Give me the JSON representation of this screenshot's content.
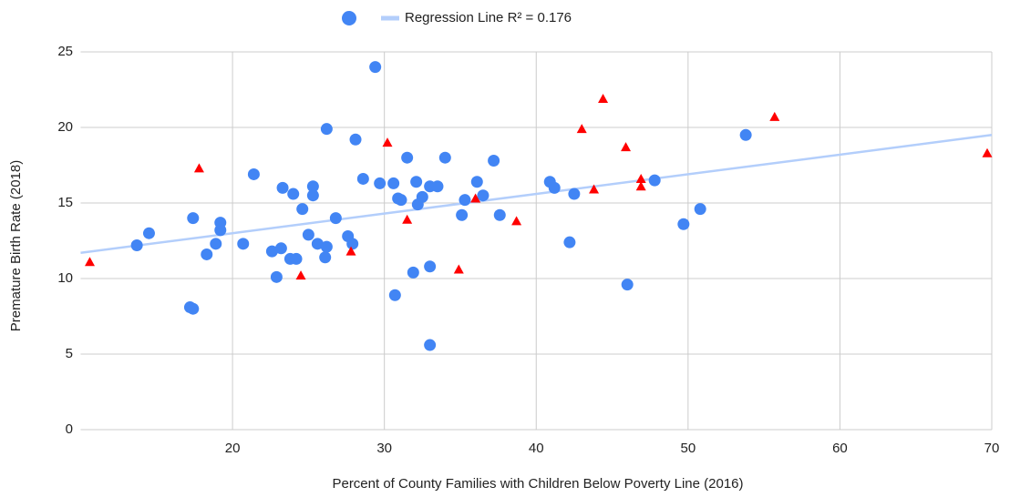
{
  "chart_data": {
    "type": "scatter",
    "x_label": "Percent of County Families with Children Below Poverty Line (2016)",
    "y_label": "Premature Birth Rate (2018)",
    "xlim": [
      10,
      70
    ],
    "xticks": [
      20,
      30,
      40,
      50,
      60,
      70
    ],
    "ylim": [
      0,
      25
    ],
    "yticks": [
      0,
      5,
      10,
      15,
      20,
      25
    ],
    "grid": true,
    "legend": "top",
    "series": [
      {
        "marker": "circle",
        "color": "#4285f4",
        "in_legend": true,
        "x": [
          13.7,
          14.5,
          17.4,
          17.2,
          17.4,
          18.3,
          18.9,
          19.2,
          19.2,
          20.7,
          21.4,
          22.6,
          22.9,
          23.2,
          23.3,
          23.8,
          24.2,
          24.0,
          24.6,
          25.0,
          25.3,
          25.3,
          25.6,
          26.1,
          26.2,
          26.2,
          26.8,
          27.6,
          27.9,
          28.1,
          28.6,
          29.4,
          29.7,
          30.6,
          30.7,
          30.9,
          31.1,
          31.5,
          31.9,
          32.1,
          32.2,
          32.5,
          33.0,
          33.0,
          33.0,
          33.5,
          34.0,
          35.1,
          35.3,
          36.1,
          36.5,
          37.2,
          37.6,
          40.9,
          41.2,
          42.2,
          42.5,
          46.0,
          47.8,
          49.7,
          50.8,
          53.8
        ],
        "values": [
          12.2,
          13.0,
          14.0,
          8.1,
          8.0,
          11.6,
          12.3,
          13.2,
          13.7,
          12.3,
          16.9,
          11.8,
          10.1,
          12.0,
          16.0,
          11.3,
          11.3,
          15.6,
          14.6,
          12.9,
          16.1,
          15.5,
          12.3,
          11.4,
          12.1,
          19.9,
          14.0,
          12.8,
          12.3,
          19.2,
          16.6,
          24.0,
          16.3,
          16.3,
          8.9,
          15.3,
          15.2,
          18.0,
          10.4,
          16.4,
          14.9,
          15.4,
          16.1,
          5.6,
          10.8,
          16.1,
          18.0,
          14.2,
          15.2,
          16.4,
          15.5,
          17.8,
          14.2,
          16.4,
          16.0,
          12.4,
          15.6,
          9.6,
          16.5,
          13.6,
          14.6,
          19.5
        ]
      },
      {
        "marker": "triangle",
        "color": "#ff0000",
        "in_legend": false,
        "x": [
          10.6,
          17.8,
          24.5,
          27.8,
          30.2,
          31.5,
          34.9,
          36.0,
          38.7,
          43.0,
          43.8,
          44.4,
          45.9,
          46.9,
          46.9,
          55.7,
          69.7
        ],
        "values": [
          11.1,
          17.3,
          10.2,
          11.8,
          19.0,
          13.9,
          10.6,
          15.3,
          13.8,
          19.9,
          15.9,
          21.9,
          18.7,
          16.6,
          16.1,
          20.7,
          18.3
        ]
      },
      {
        "marker": "line",
        "name": "Regression Line R² = 0.176",
        "color": "#b3cefb",
        "in_legend": true,
        "x": [
          10,
          70
        ],
        "values": [
          11.7,
          19.5
        ]
      }
    ]
  }
}
